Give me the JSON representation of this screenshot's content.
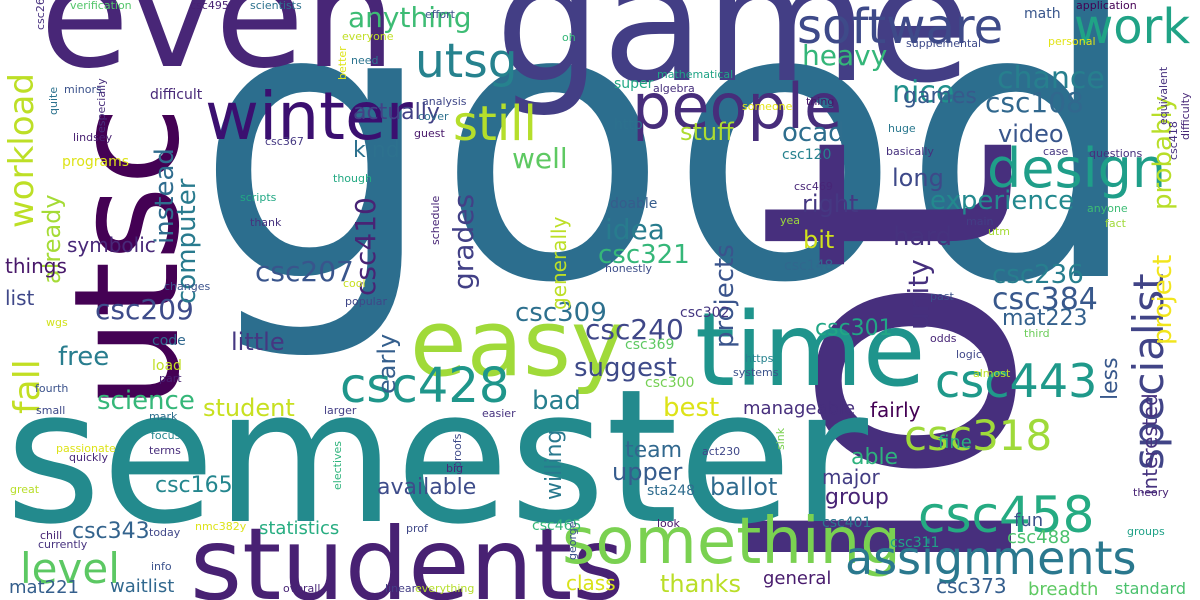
{
  "words": [
    {
      "text": "good",
      "color": "#2c6e8e"
    },
    {
      "text": "lot",
      "color": "#472f7d"
    },
    {
      "text": "semester",
      "color": "#238a8d"
    },
    {
      "text": "game",
      "color": "#433e85"
    },
    {
      "text": "even",
      "color": "#482677"
    },
    {
      "text": "utsc",
      "color": "#440154"
    },
    {
      "text": "time",
      "color": "#1f948c"
    },
    {
      "text": "students",
      "color": "#482173"
    },
    {
      "text": "something",
      "color": "#7ad151"
    },
    {
      "text": "easy",
      "color": "#a0da39"
    },
    {
      "text": "people",
      "color": "#472d7b"
    },
    {
      "text": "winter",
      "color": "#3b0f70"
    },
    {
      "text": "software",
      "color": "#3e4a89"
    },
    {
      "text": "work",
      "color": "#20a386"
    },
    {
      "text": "design",
      "color": "#1f9e89"
    },
    {
      "text": "utsg",
      "color": "#26828e"
    },
    {
      "text": "still",
      "color": "#b5de2b"
    },
    {
      "text": "assignments",
      "color": "#2a788e"
    },
    {
      "text": "specialist",
      "color": "#414487"
    },
    {
      "text": "fall",
      "color": "#c2df23"
    },
    {
      "text": "workload",
      "color": "#bddf26"
    },
    {
      "text": "csc428",
      "color": "#1f968b"
    },
    {
      "text": "csc458",
      "color": "#25ab82"
    },
    {
      "text": "csc443",
      "color": "#1f998a"
    },
    {
      "text": "csc318",
      "color": "#9fda3a"
    },
    {
      "text": "level",
      "color": "#5cc863"
    },
    {
      "text": "anything",
      "color": "#3dbc74"
    },
    {
      "text": "chance",
      "color": "#277f8e"
    },
    {
      "text": "csc108",
      "color": "#31688e"
    },
    {
      "text": "nice",
      "color": "#21918c"
    },
    {
      "text": "heavy",
      "color": "#34b679"
    },
    {
      "text": "video",
      "color": "#39568c"
    },
    {
      "text": "experience",
      "color": "#23898e"
    },
    {
      "text": "probably",
      "color": "#b8de29"
    },
    {
      "text": "project",
      "color": "#f1e51d"
    },
    {
      "text": "csc384",
      "color": "#38588c"
    },
    {
      "text": "csc236",
      "color": "#277e8e"
    },
    {
      "text": "mat223",
      "color": "#34618d"
    },
    {
      "text": "csc207",
      "color": "#39558c"
    },
    {
      "text": "csc209",
      "color": "#3e4c8a"
    },
    {
      "text": "csc240",
      "color": "#3f4788"
    },
    {
      "text": "csc410",
      "color": "#482475"
    },
    {
      "text": "csc309",
      "color": "#2d708e"
    },
    {
      "text": "csc321",
      "color": "#35b779"
    },
    {
      "text": "csc301",
      "color": "#21a685"
    },
    {
      "text": "unity",
      "color": "#46307e"
    },
    {
      "text": "idea",
      "color": "#287c8e"
    },
    {
      "text": "projects",
      "color": "#3a548c"
    },
    {
      "text": "grades",
      "color": "#424086"
    },
    {
      "text": "computer",
      "color": "#297b8e"
    },
    {
      "text": "instead",
      "color": "#2f6c8e"
    },
    {
      "text": "actually",
      "color": "#424186"
    },
    {
      "text": "stuff",
      "color": "#addc30"
    },
    {
      "text": "ocad",
      "color": "#2e6e8e"
    },
    {
      "text": "well",
      "color": "#5ec962"
    },
    {
      "text": "right",
      "color": "#453882"
    },
    {
      "text": "bit",
      "color": "#d0e11c"
    },
    {
      "text": "hard",
      "color": "#46327e"
    },
    {
      "text": "long",
      "color": "#3e4989"
    },
    {
      "text": "games",
      "color": "#375a8c"
    },
    {
      "text": "kind",
      "color": "#2d718e"
    },
    {
      "text": "already",
      "color": "#a5db36"
    },
    {
      "text": "symbolic",
      "color": "#482878"
    },
    {
      "text": "things",
      "color": "#48186a"
    },
    {
      "text": "list",
      "color": "#3f4889"
    },
    {
      "text": "free",
      "color": "#287d8e"
    },
    {
      "text": "little",
      "color": "#453781"
    },
    {
      "text": "science",
      "color": "#35b779"
    },
    {
      "text": "student",
      "color": "#c8e020"
    },
    {
      "text": "suggest",
      "color": "#3e4a89"
    },
    {
      "text": "best",
      "color": "#dde318"
    },
    {
      "text": "bad",
      "color": "#277f8e"
    },
    {
      "text": "early",
      "color": "#355f8d"
    },
    {
      "text": "generally",
      "color": "#bddf26"
    },
    {
      "text": "team",
      "color": "#31688e"
    },
    {
      "text": "upper",
      "color": "#365c8d"
    },
    {
      "text": "available",
      "color": "#3e4c8a"
    },
    {
      "text": "willing",
      "color": "#29798e"
    },
    {
      "text": "ballot",
      "color": "#2f6b8e"
    },
    {
      "text": "group",
      "color": "#482475"
    },
    {
      "text": "able",
      "color": "#2db27d"
    },
    {
      "text": "major",
      "color": "#433d84"
    },
    {
      "text": "manageable",
      "color": "#472f7d"
    },
    {
      "text": "fairly",
      "color": "#440154"
    },
    {
      "text": "fine",
      "color": "#29af7f"
    },
    {
      "text": "fun",
      "color": "#3b528b"
    },
    {
      "text": "less",
      "color": "#38588c"
    },
    {
      "text": "interested",
      "color": "#46337f"
    },
    {
      "text": "csc165",
      "color": "#24868e"
    },
    {
      "text": "csc343",
      "color": "#33638d"
    },
    {
      "text": "statistics",
      "color": "#27ad81"
    },
    {
      "text": "waitlist",
      "color": "#31688e"
    },
    {
      "text": "mat221",
      "color": "#355f8d"
    },
    {
      "text": "class",
      "color": "#d8e219"
    },
    {
      "text": "thanks",
      "color": "#bade28"
    },
    {
      "text": "general",
      "color": "#481b6d"
    },
    {
      "text": "csc488",
      "color": "#4ac16d"
    },
    {
      "text": "csc373",
      "color": "#355e8d"
    },
    {
      "text": "breadth",
      "color": "#5ec962"
    },
    {
      "text": "standard",
      "color": "#4ac16d"
    },
    {
      "text": "csc311",
      "color": "#1fa187"
    },
    {
      "text": "csc401",
      "color": "#2a778e"
    },
    {
      "text": "csc465",
      "color": "#35b779"
    },
    {
      "text": "sta248",
      "color": "#2f6c8e"
    },
    {
      "text": "csc120",
      "color": "#26828e"
    },
    {
      "text": "csc148",
      "color": "#31688e"
    },
    {
      "text": "csc302",
      "color": "#453781"
    },
    {
      "text": "csc369",
      "color": "#5ec962"
    },
    {
      "text": "csc300",
      "color": "#75d054"
    },
    {
      "text": "csc469",
      "color": "#482677"
    },
    {
      "text": "csc367",
      "color": "#453882"
    },
    {
      "text": "csc263",
      "color": "#46307e"
    },
    {
      "text": "csc495",
      "color": "#482173"
    },
    {
      "text": "csc418",
      "color": "#46307e"
    },
    {
      "text": "act230",
      "color": "#3f4788"
    },
    {
      "text": "nmc382y",
      "color": "#dde318"
    },
    {
      "text": "doable",
      "color": "#365d8d"
    },
    {
      "text": "honestly",
      "color": "#3d4e8a"
    },
    {
      "text": "schedule",
      "color": "#482677"
    },
    {
      "text": "programs",
      "color": "#dde318"
    },
    {
      "text": "difficult",
      "color": "#482878"
    },
    {
      "text": "code",
      "color": "#31688e"
    },
    {
      "text": "load",
      "color": "#c0df25"
    },
    {
      "text": "changes",
      "color": "#3b528b"
    },
    {
      "text": "scripts",
      "color": "#22a884"
    },
    {
      "text": "thank",
      "color": "#46327e"
    },
    {
      "text": "though",
      "color": "#23a983"
    },
    {
      "text": "cool",
      "color": "#c8e020"
    },
    {
      "text": "popular",
      "color": "#3f4788"
    },
    {
      "text": "wgs",
      "color": "#d2e21b"
    },
    {
      "text": "part",
      "color": "#482071"
    },
    {
      "text": "fourth",
      "color": "#3b528b"
    },
    {
      "text": "small",
      "color": "#3e4989"
    },
    {
      "text": "mark",
      "color": "#2e6f8e"
    },
    {
      "text": "focus",
      "color": "#24878e"
    },
    {
      "text": "quickly",
      "color": "#482878"
    },
    {
      "text": "passionate",
      "color": "#dde318"
    },
    {
      "text": "great",
      "color": "#b8de29"
    },
    {
      "text": "chill",
      "color": "#482475"
    },
    {
      "text": "currently",
      "color": "#46327e"
    },
    {
      "text": "info",
      "color": "#3b528b"
    },
    {
      "text": "today",
      "color": "#3f4788"
    },
    {
      "text": "terms",
      "color": "#472d7b"
    },
    {
      "text": "electives",
      "color": "#2fb47c"
    },
    {
      "text": "proofs",
      "color": "#3e4a89"
    },
    {
      "text": "prof",
      "color": "#3f4788"
    },
    {
      "text": "overall",
      "color": "#482576"
    },
    {
      "text": "linear",
      "color": "#433e85"
    },
    {
      "text": "everything",
      "color": "#b5de2b"
    },
    {
      "text": "george",
      "color": "#3b528b"
    },
    {
      "text": "sink",
      "color": "#7ad151"
    },
    {
      "text": "look",
      "color": "#48186a"
    },
    {
      "text": "larger",
      "color": "#433e85"
    },
    {
      "text": "big",
      "color": "#482677"
    },
    {
      "text": "easier",
      "color": "#46337f"
    },
    {
      "text": "https",
      "color": "#26828e"
    },
    {
      "text": "systems",
      "color": "#3b528b"
    },
    {
      "text": "almost",
      "color": "#bddf26"
    },
    {
      "text": "logic",
      "color": "#3f4788"
    },
    {
      "text": "odds",
      "color": "#482677"
    },
    {
      "text": "past",
      "color": "#3b528b"
    },
    {
      "text": "third",
      "color": "#6ccd5a"
    },
    {
      "text": "main",
      "color": "#433e85"
    },
    {
      "text": "yea",
      "color": "#9bd93c"
    },
    {
      "text": "utm",
      "color": "#a5db36"
    },
    {
      "text": "fact",
      "color": "#a0da39"
    },
    {
      "text": "anyone",
      "color": "#3dbc74"
    },
    {
      "text": "groups",
      "color": "#1fa187"
    },
    {
      "text": "theory",
      "color": "#482475"
    },
    {
      "text": "personal",
      "color": "#e2e418"
    },
    {
      "text": "math",
      "color": "#39568c"
    },
    {
      "text": "application",
      "color": "#440154"
    },
    {
      "text": "difficulty",
      "color": "#482878"
    },
    {
      "text": "equivalent",
      "color": "#46307e"
    },
    {
      "text": "questions",
      "color": "#472f7d"
    },
    {
      "text": "case",
      "color": "#453781"
    },
    {
      "text": "huge",
      "color": "#2a788e"
    },
    {
      "text": "basically",
      "color": "#46307e"
    },
    {
      "text": "thing",
      "color": "#481769"
    },
    {
      "text": "supplemental",
      "color": "#3e4a89"
    },
    {
      "text": "someone",
      "color": "#e5e419"
    },
    {
      "text": "mathematical",
      "color": "#20a486"
    },
    {
      "text": "algebra",
      "color": "#472f7d"
    },
    {
      "text": "super",
      "color": "#22a884"
    },
    {
      "text": "http",
      "color": "#2c718e"
    },
    {
      "text": "analysis",
      "color": "#3f4788"
    },
    {
      "text": "cover",
      "color": "#2d708e"
    },
    {
      "text": "guest",
      "color": "#48186a"
    },
    {
      "text": "effort",
      "color": "#3b528b"
    },
    {
      "text": "oh",
      "color": "#35b779"
    },
    {
      "text": "need",
      "color": "#2b748e"
    },
    {
      "text": "everyone",
      "color": "#c0df25"
    },
    {
      "text": "better",
      "color": "#dde318"
    },
    {
      "text": "verification",
      "color": "#52c569"
    },
    {
      "text": "scientists",
      "color": "#2c728e"
    },
    {
      "text": "minors",
      "color": "#3b528b"
    },
    {
      "text": "especially",
      "color": "#472d7b"
    },
    {
      "text": "quite",
      "color": "#2c728e"
    },
    {
      "text": "lindsey",
      "color": "#482071"
    }
  ]
}
